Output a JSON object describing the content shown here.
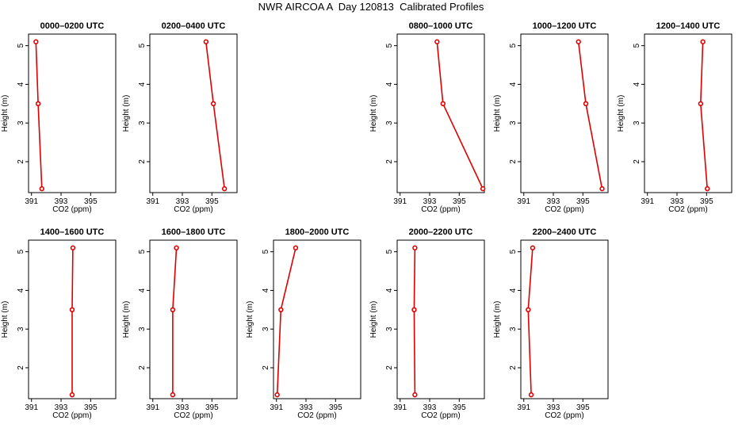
{
  "title": "NWR AIRCOA A  Day 120813  Calibrated Profiles",
  "colors": {
    "series": "#e00000",
    "axis": "#000000"
  },
  "chart_data": [
    {
      "type": "line",
      "title": "0000–0200 UTC",
      "xlabel": "CO2 (ppm)",
      "ylabel": "Height (m)",
      "xlim": [
        390.8,
        396.7
      ],
      "ylim": [
        1.2,
        5.3
      ],
      "xticks": [
        391,
        393,
        395
      ],
      "yticks": [
        2,
        3,
        4,
        5
      ],
      "points": [
        {
          "x": 391.3,
          "y": 5.1
        },
        {
          "x": 391.45,
          "y": 3.5
        },
        {
          "x": 391.7,
          "y": 1.3
        }
      ]
    },
    {
      "type": "line",
      "title": "0200–0400 UTC",
      "xlabel": "CO2 (ppm)",
      "ylabel": "Height (m)",
      "xlim": [
        390.8,
        396.7
      ],
      "ylim": [
        1.2,
        5.3
      ],
      "xticks": [
        391,
        393,
        395
      ],
      "yticks": [
        2,
        3,
        4,
        5
      ],
      "points": [
        {
          "x": 394.6,
          "y": 5.1
        },
        {
          "x": 395.1,
          "y": 3.5
        },
        {
          "x": 395.85,
          "y": 1.3
        }
      ]
    },
    null,
    {
      "type": "line",
      "title": "0800–1000 UTC",
      "xlabel": "CO2 (ppm)",
      "ylabel": "Height (m)",
      "xlim": [
        390.8,
        396.7
      ],
      "ylim": [
        1.2,
        5.3
      ],
      "xticks": [
        391,
        393,
        395
      ],
      "yticks": [
        2,
        3,
        4,
        5
      ],
      "points": [
        {
          "x": 393.5,
          "y": 5.1
        },
        {
          "x": 393.9,
          "y": 3.5
        },
        {
          "x": 396.6,
          "y": 1.3
        }
      ]
    },
    {
      "type": "line",
      "title": "1000–1200 UTC",
      "xlabel": "CO2 (ppm)",
      "ylabel": "Height (m)",
      "xlim": [
        390.8,
        396.7
      ],
      "ylim": [
        1.2,
        5.3
      ],
      "xticks": [
        391,
        393,
        395
      ],
      "yticks": [
        2,
        3,
        4,
        5
      ],
      "points": [
        {
          "x": 394.7,
          "y": 5.1
        },
        {
          "x": 395.2,
          "y": 3.5
        },
        {
          "x": 396.3,
          "y": 1.3
        }
      ]
    },
    {
      "type": "line",
      "title": "1200–1400 UTC",
      "xlabel": "CO2 (ppm)",
      "ylabel": "Height (m)",
      "xlim": [
        390.8,
        396.7
      ],
      "ylim": [
        1.2,
        5.3
      ],
      "xticks": [
        391,
        393,
        395
      ],
      "yticks": [
        2,
        3,
        4,
        5
      ],
      "points": [
        {
          "x": 394.75,
          "y": 5.1
        },
        {
          "x": 394.6,
          "y": 3.5
        },
        {
          "x": 395.05,
          "y": 1.3
        }
      ]
    },
    {
      "type": "line",
      "title": "1400–1600 UTC",
      "xlabel": "CO2 (ppm)",
      "ylabel": "Height (m)",
      "xlim": [
        390.8,
        396.7
      ],
      "ylim": [
        1.2,
        5.3
      ],
      "xticks": [
        391,
        393,
        395
      ],
      "yticks": [
        2,
        3,
        4,
        5
      ],
      "points": [
        {
          "x": 393.8,
          "y": 5.1
        },
        {
          "x": 393.75,
          "y": 3.5
        },
        {
          "x": 393.75,
          "y": 1.3
        }
      ]
    },
    {
      "type": "line",
      "title": "1600–1800 UTC",
      "xlabel": "CO2 (ppm)",
      "ylabel": "Height (m)",
      "xlim": [
        390.8,
        396.7
      ],
      "ylim": [
        1.2,
        5.3
      ],
      "xticks": [
        391,
        393,
        395
      ],
      "yticks": [
        2,
        3,
        4,
        5
      ],
      "points": [
        {
          "x": 392.6,
          "y": 5.1
        },
        {
          "x": 392.35,
          "y": 3.5
        },
        {
          "x": 392.35,
          "y": 1.3
        }
      ]
    },
    {
      "type": "line",
      "title": "1800–2000 UTC",
      "xlabel": "CO2 (ppm)",
      "ylabel": "Height (m)",
      "xlim": [
        390.8,
        396.7
      ],
      "ylim": [
        1.2,
        5.3
      ],
      "xticks": [
        391,
        393,
        395
      ],
      "yticks": [
        2,
        3,
        4,
        5
      ],
      "points": [
        {
          "x": 392.3,
          "y": 5.1
        },
        {
          "x": 391.3,
          "y": 3.5
        },
        {
          "x": 391.05,
          "y": 1.3
        }
      ]
    },
    {
      "type": "line",
      "title": "2000–2200 UTC",
      "xlabel": "CO2 (ppm)",
      "ylabel": "Height (m)",
      "xlim": [
        390.8,
        396.7
      ],
      "ylim": [
        1.2,
        5.3
      ],
      "xticks": [
        391,
        393,
        395
      ],
      "yticks": [
        2,
        3,
        4,
        5
      ],
      "points": [
        {
          "x": 392.0,
          "y": 5.1
        },
        {
          "x": 391.95,
          "y": 3.5
        },
        {
          "x": 392.0,
          "y": 1.3
        }
      ]
    },
    {
      "type": "line",
      "title": "2200–2400 UTC",
      "xlabel": "CO2 (ppm)",
      "ylabel": "Height (m)",
      "xlim": [
        390.8,
        396.7
      ],
      "ylim": [
        1.2,
        5.3
      ],
      "xticks": [
        391,
        393,
        395
      ],
      "yticks": [
        2,
        3,
        4,
        5
      ],
      "points": [
        {
          "x": 391.6,
          "y": 5.1
        },
        {
          "x": 391.3,
          "y": 3.5
        },
        {
          "x": 391.5,
          "y": 1.3
        }
      ]
    }
  ]
}
